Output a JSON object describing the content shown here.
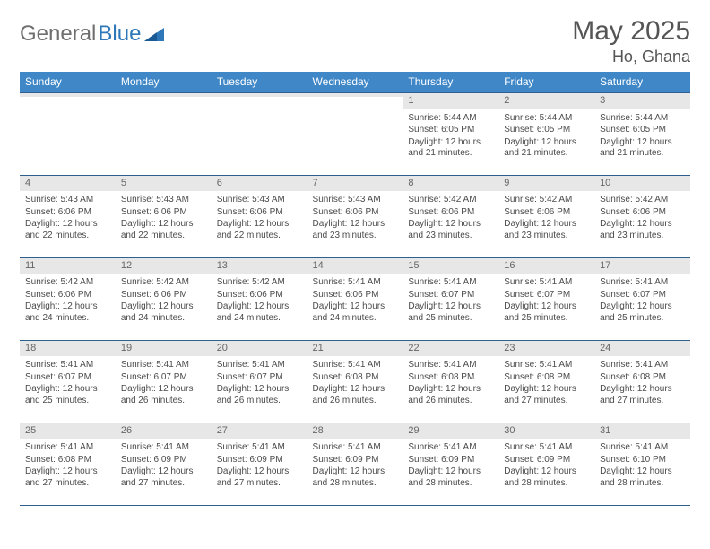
{
  "logo": {
    "text1": "General",
    "text2": "Blue"
  },
  "title": "May 2025",
  "location": "Ho, Ghana",
  "weekdays": [
    "Sunday",
    "Monday",
    "Tuesday",
    "Wednesday",
    "Thursday",
    "Friday",
    "Saturday"
  ],
  "colors": {
    "header_bg": "#3f87c7",
    "header_border": "#2e5f8f",
    "daynum_bg": "#e7e7e7",
    "text": "#4a4a4a",
    "logo_gray": "#6f6f6f",
    "logo_blue": "#2e77b8"
  },
  "weeks": [
    [
      {
        "n": "",
        "sr": "",
        "ss": "",
        "dl": ""
      },
      {
        "n": "",
        "sr": "",
        "ss": "",
        "dl": ""
      },
      {
        "n": "",
        "sr": "",
        "ss": "",
        "dl": ""
      },
      {
        "n": "",
        "sr": "",
        "ss": "",
        "dl": ""
      },
      {
        "n": "1",
        "sr": "Sunrise: 5:44 AM",
        "ss": "Sunset: 6:05 PM",
        "dl": "Daylight: 12 hours and 21 minutes."
      },
      {
        "n": "2",
        "sr": "Sunrise: 5:44 AM",
        "ss": "Sunset: 6:05 PM",
        "dl": "Daylight: 12 hours and 21 minutes."
      },
      {
        "n": "3",
        "sr": "Sunrise: 5:44 AM",
        "ss": "Sunset: 6:05 PM",
        "dl": "Daylight: 12 hours and 21 minutes."
      }
    ],
    [
      {
        "n": "4",
        "sr": "Sunrise: 5:43 AM",
        "ss": "Sunset: 6:06 PM",
        "dl": "Daylight: 12 hours and 22 minutes."
      },
      {
        "n": "5",
        "sr": "Sunrise: 5:43 AM",
        "ss": "Sunset: 6:06 PM",
        "dl": "Daylight: 12 hours and 22 minutes."
      },
      {
        "n": "6",
        "sr": "Sunrise: 5:43 AM",
        "ss": "Sunset: 6:06 PM",
        "dl": "Daylight: 12 hours and 22 minutes."
      },
      {
        "n": "7",
        "sr": "Sunrise: 5:43 AM",
        "ss": "Sunset: 6:06 PM",
        "dl": "Daylight: 12 hours and 23 minutes."
      },
      {
        "n": "8",
        "sr": "Sunrise: 5:42 AM",
        "ss": "Sunset: 6:06 PM",
        "dl": "Daylight: 12 hours and 23 minutes."
      },
      {
        "n": "9",
        "sr": "Sunrise: 5:42 AM",
        "ss": "Sunset: 6:06 PM",
        "dl": "Daylight: 12 hours and 23 minutes."
      },
      {
        "n": "10",
        "sr": "Sunrise: 5:42 AM",
        "ss": "Sunset: 6:06 PM",
        "dl": "Daylight: 12 hours and 23 minutes."
      }
    ],
    [
      {
        "n": "11",
        "sr": "Sunrise: 5:42 AM",
        "ss": "Sunset: 6:06 PM",
        "dl": "Daylight: 12 hours and 24 minutes."
      },
      {
        "n": "12",
        "sr": "Sunrise: 5:42 AM",
        "ss": "Sunset: 6:06 PM",
        "dl": "Daylight: 12 hours and 24 minutes."
      },
      {
        "n": "13",
        "sr": "Sunrise: 5:42 AM",
        "ss": "Sunset: 6:06 PM",
        "dl": "Daylight: 12 hours and 24 minutes."
      },
      {
        "n": "14",
        "sr": "Sunrise: 5:41 AM",
        "ss": "Sunset: 6:06 PM",
        "dl": "Daylight: 12 hours and 24 minutes."
      },
      {
        "n": "15",
        "sr": "Sunrise: 5:41 AM",
        "ss": "Sunset: 6:07 PM",
        "dl": "Daylight: 12 hours and 25 minutes."
      },
      {
        "n": "16",
        "sr": "Sunrise: 5:41 AM",
        "ss": "Sunset: 6:07 PM",
        "dl": "Daylight: 12 hours and 25 minutes."
      },
      {
        "n": "17",
        "sr": "Sunrise: 5:41 AM",
        "ss": "Sunset: 6:07 PM",
        "dl": "Daylight: 12 hours and 25 minutes."
      }
    ],
    [
      {
        "n": "18",
        "sr": "Sunrise: 5:41 AM",
        "ss": "Sunset: 6:07 PM",
        "dl": "Daylight: 12 hours and 25 minutes."
      },
      {
        "n": "19",
        "sr": "Sunrise: 5:41 AM",
        "ss": "Sunset: 6:07 PM",
        "dl": "Daylight: 12 hours and 26 minutes."
      },
      {
        "n": "20",
        "sr": "Sunrise: 5:41 AM",
        "ss": "Sunset: 6:07 PM",
        "dl": "Daylight: 12 hours and 26 minutes."
      },
      {
        "n": "21",
        "sr": "Sunrise: 5:41 AM",
        "ss": "Sunset: 6:08 PM",
        "dl": "Daylight: 12 hours and 26 minutes."
      },
      {
        "n": "22",
        "sr": "Sunrise: 5:41 AM",
        "ss": "Sunset: 6:08 PM",
        "dl": "Daylight: 12 hours and 26 minutes."
      },
      {
        "n": "23",
        "sr": "Sunrise: 5:41 AM",
        "ss": "Sunset: 6:08 PM",
        "dl": "Daylight: 12 hours and 27 minutes."
      },
      {
        "n": "24",
        "sr": "Sunrise: 5:41 AM",
        "ss": "Sunset: 6:08 PM",
        "dl": "Daylight: 12 hours and 27 minutes."
      }
    ],
    [
      {
        "n": "25",
        "sr": "Sunrise: 5:41 AM",
        "ss": "Sunset: 6:08 PM",
        "dl": "Daylight: 12 hours and 27 minutes."
      },
      {
        "n": "26",
        "sr": "Sunrise: 5:41 AM",
        "ss": "Sunset: 6:09 PM",
        "dl": "Daylight: 12 hours and 27 minutes."
      },
      {
        "n": "27",
        "sr": "Sunrise: 5:41 AM",
        "ss": "Sunset: 6:09 PM",
        "dl": "Daylight: 12 hours and 27 minutes."
      },
      {
        "n": "28",
        "sr": "Sunrise: 5:41 AM",
        "ss": "Sunset: 6:09 PM",
        "dl": "Daylight: 12 hours and 28 minutes."
      },
      {
        "n": "29",
        "sr": "Sunrise: 5:41 AM",
        "ss": "Sunset: 6:09 PM",
        "dl": "Daylight: 12 hours and 28 minutes."
      },
      {
        "n": "30",
        "sr": "Sunrise: 5:41 AM",
        "ss": "Sunset: 6:09 PM",
        "dl": "Daylight: 12 hours and 28 minutes."
      },
      {
        "n": "31",
        "sr": "Sunrise: 5:41 AM",
        "ss": "Sunset: 6:10 PM",
        "dl": "Daylight: 12 hours and 28 minutes."
      }
    ]
  ]
}
